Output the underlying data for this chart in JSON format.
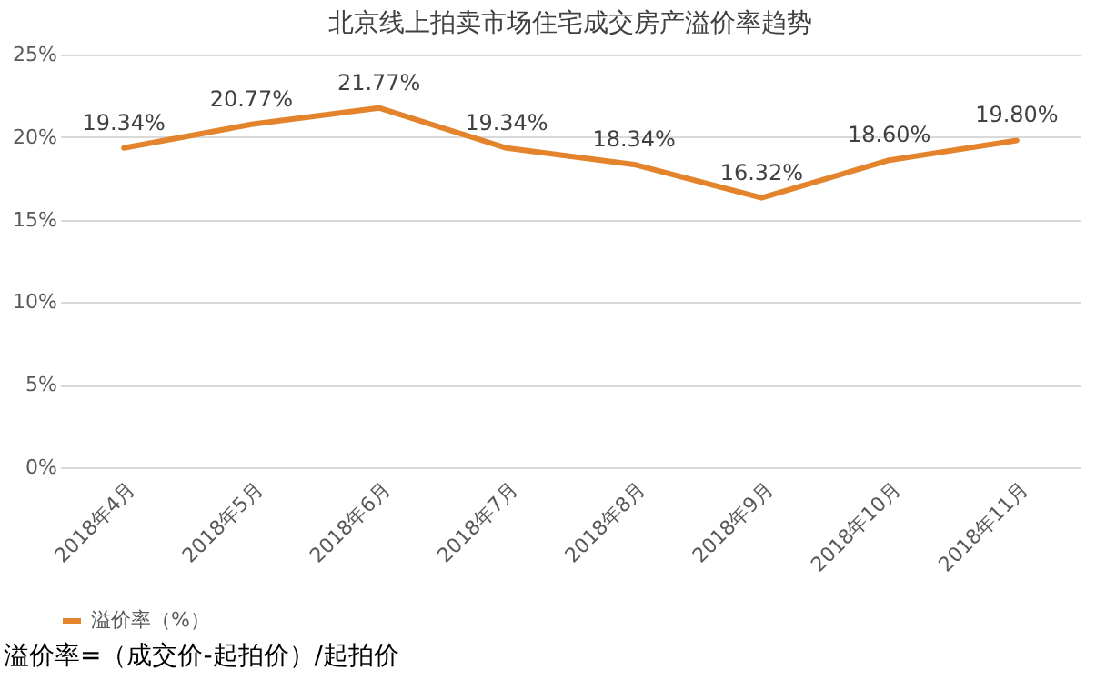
{
  "chart_data": {
    "type": "line",
    "title": "北京线上拍卖市场住宅成交房产溢价率趋势",
    "categories": [
      "2018年4月",
      "2018年5月",
      "2018年6月",
      "2018年7月",
      "2018年8月",
      "2018年9月",
      "2018年10月",
      "2018年11月"
    ],
    "series": [
      {
        "name": "溢价率（%）",
        "color": "#e3842c",
        "values": [
          19.34,
          20.77,
          21.77,
          19.34,
          18.34,
          16.32,
          18.6,
          19.8
        ]
      }
    ],
    "value_labels": [
      "19.34%",
      "20.77%",
      "21.77%",
      "19.34%",
      "18.34%",
      "16.32%",
      "18.60%",
      "19.80%"
    ],
    "ylim": [
      0,
      25
    ],
    "yticks": [
      {
        "value": 0,
        "label": "0%"
      },
      {
        "value": 5,
        "label": "5%"
      },
      {
        "value": 10,
        "label": "10%"
      },
      {
        "value": 15,
        "label": "15%"
      },
      {
        "value": 20,
        "label": "20%"
      },
      {
        "value": 25,
        "label": "25%"
      }
    ],
    "grid": "y",
    "legend": "bottom",
    "marker": "none",
    "annotations": [
      "溢价率=（成交价-起拍价）/起拍价"
    ]
  }
}
